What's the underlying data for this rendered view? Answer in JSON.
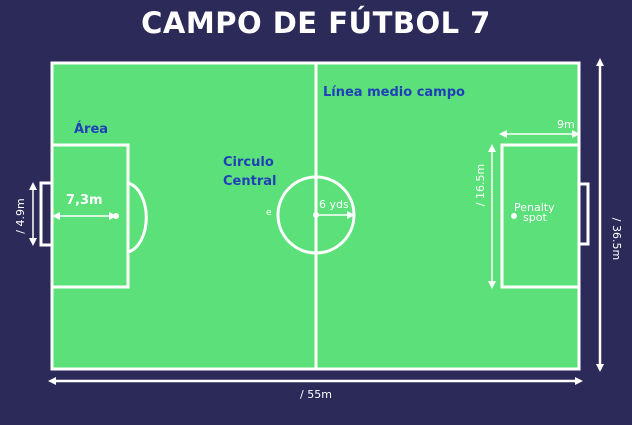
{
  "title": "CAMPO DE FÚTBOL 7",
  "labels": {
    "halfway_line": "Línea medio campo",
    "area": "Área",
    "center_circle_line1": "Circulo",
    "center_circle_line2": "Central",
    "area_depth": "7,3m",
    "circle_radius": "6 yds",
    "goal_width": "/ 4.9m",
    "area_width": "/ 16.5m",
    "penalty_distance": "9m",
    "penalty_spot_line1": "Penalty",
    "penalty_spot_line2": "spot",
    "field_width": "/ 36.5m",
    "field_length": "/ 55m",
    "small_mark": "e"
  },
  "colors": {
    "background": "#2b2a58",
    "grass": "#5ce07a",
    "lines": "#ffffff",
    "label_blue": "#2040b8"
  }
}
